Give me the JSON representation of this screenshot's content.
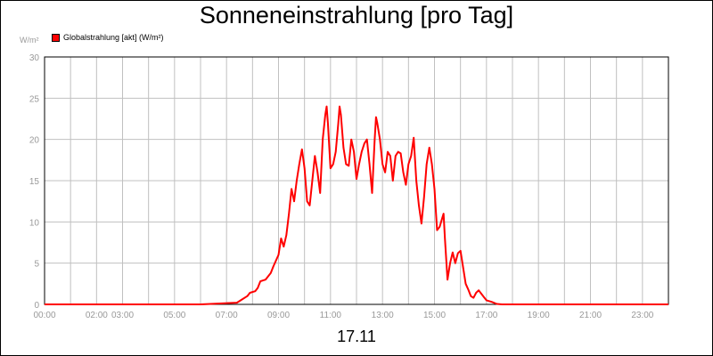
{
  "chart_data": {
    "type": "line",
    "title": "Sonneneinstrahlung [pro Tag]",
    "ylabel": "W/m²",
    "xlabel": "17.11",
    "ylim": [
      0,
      30
    ],
    "xlim": [
      0,
      24
    ],
    "grid": true,
    "legend_position": "top-left",
    "y_ticks": [
      "0",
      "5",
      "10",
      "15",
      "20",
      "25",
      "30"
    ],
    "x_ticks": [
      {
        "label": "00:00",
        "hour": 0
      },
      {
        "label": "02:00",
        "hour": 2
      },
      {
        "label": "03:00",
        "hour": 3
      },
      {
        "label": "05:00",
        "hour": 5
      },
      {
        "label": "07:00",
        "hour": 7
      },
      {
        "label": "09:00",
        "hour": 9
      },
      {
        "label": "11:00",
        "hour": 11
      },
      {
        "label": "13:00",
        "hour": 13
      },
      {
        "label": "15:00",
        "hour": 15
      },
      {
        "label": "17:00",
        "hour": 17
      },
      {
        "label": "19:00",
        "hour": 19
      },
      {
        "label": "21:00",
        "hour": 21
      },
      {
        "label": "23:00",
        "hour": 23
      }
    ],
    "series": [
      {
        "name": "Globalstrahlung [akt] (W/m²)",
        "color": "#ff0000",
        "points": [
          [
            0,
            0
          ],
          [
            6.0,
            0
          ],
          [
            7.4,
            0.2
          ],
          [
            7.6,
            0.6
          ],
          [
            7.8,
            1.0
          ],
          [
            7.9,
            1.4
          ],
          [
            8.1,
            1.6
          ],
          [
            8.2,
            2.0
          ],
          [
            8.3,
            2.8
          ],
          [
            8.5,
            3.0
          ],
          [
            8.7,
            3.8
          ],
          [
            8.8,
            4.6
          ],
          [
            9.0,
            6.0
          ],
          [
            9.1,
            8.0
          ],
          [
            9.2,
            7.0
          ],
          [
            9.3,
            8.4
          ],
          [
            9.4,
            11.0
          ],
          [
            9.5,
            14.0
          ],
          [
            9.6,
            12.5
          ],
          [
            9.7,
            15.0
          ],
          [
            9.8,
            17.0
          ],
          [
            9.9,
            18.8
          ],
          [
            10.0,
            16.5
          ],
          [
            10.1,
            12.5
          ],
          [
            10.2,
            12.0
          ],
          [
            10.3,
            15.0
          ],
          [
            10.4,
            18.0
          ],
          [
            10.5,
            16.0
          ],
          [
            10.6,
            13.5
          ],
          [
            10.7,
            20.0
          ],
          [
            10.8,
            23.0
          ],
          [
            10.85,
            24.0
          ],
          [
            10.9,
            22.0
          ],
          [
            11.0,
            16.5
          ],
          [
            11.1,
            17.0
          ],
          [
            11.2,
            18.5
          ],
          [
            11.3,
            22.0
          ],
          [
            11.35,
            24.0
          ],
          [
            11.4,
            23.0
          ],
          [
            11.5,
            19.0
          ],
          [
            11.6,
            17.0
          ],
          [
            11.7,
            16.8
          ],
          [
            11.8,
            20.0
          ],
          [
            11.9,
            18.5
          ],
          [
            12.0,
            15.2
          ],
          [
            12.1,
            17.0
          ],
          [
            12.2,
            18.5
          ],
          [
            12.3,
            19.5
          ],
          [
            12.4,
            20.0
          ],
          [
            12.5,
            17.0
          ],
          [
            12.6,
            13.5
          ],
          [
            12.7,
            20.0
          ],
          [
            12.75,
            22.7
          ],
          [
            12.8,
            22.0
          ],
          [
            12.9,
            20.0
          ],
          [
            13.0,
            17.0
          ],
          [
            13.1,
            16.0
          ],
          [
            13.2,
            18.5
          ],
          [
            13.3,
            18.0
          ],
          [
            13.4,
            15.0
          ],
          [
            13.5,
            18.0
          ],
          [
            13.6,
            18.5
          ],
          [
            13.7,
            18.3
          ],
          [
            13.8,
            16.0
          ],
          [
            13.9,
            14.5
          ],
          [
            14.0,
            17.0
          ],
          [
            14.1,
            18.0
          ],
          [
            14.2,
            20.2
          ],
          [
            14.3,
            15.0
          ],
          [
            14.4,
            12.0
          ],
          [
            14.5,
            9.8
          ],
          [
            14.6,
            13.0
          ],
          [
            14.7,
            17.0
          ],
          [
            14.8,
            19.0
          ],
          [
            14.9,
            17.0
          ],
          [
            15.0,
            14.0
          ],
          [
            15.1,
            9.0
          ],
          [
            15.2,
            9.4
          ],
          [
            15.3,
            10.5
          ],
          [
            15.35,
            11.0
          ],
          [
            15.4,
            8.0
          ],
          [
            15.5,
            3.0
          ],
          [
            15.6,
            5.0
          ],
          [
            15.7,
            6.3
          ],
          [
            15.8,
            5.0
          ],
          [
            15.9,
            6.2
          ],
          [
            16.0,
            6.5
          ],
          [
            16.1,
            4.5
          ],
          [
            16.2,
            2.5
          ],
          [
            16.3,
            1.8
          ],
          [
            16.4,
            1.0
          ],
          [
            16.5,
            0.8
          ],
          [
            16.6,
            1.4
          ],
          [
            16.7,
            1.7
          ],
          [
            16.8,
            1.3
          ],
          [
            16.9,
            0.9
          ],
          [
            17.0,
            0.5
          ],
          [
            17.2,
            0.3
          ],
          [
            17.4,
            0.05
          ],
          [
            17.6,
            0
          ],
          [
            24,
            0
          ]
        ]
      }
    ]
  }
}
